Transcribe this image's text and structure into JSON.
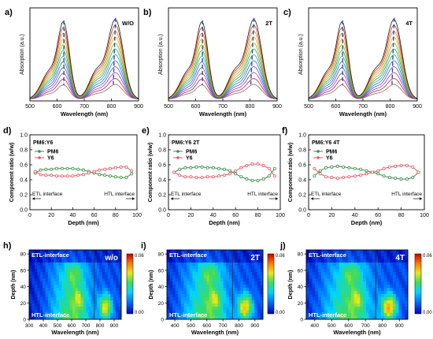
{
  "chart_data": [
    {
      "type": "line",
      "panel_label": "a)",
      "annotation": "W/O",
      "xlabel": "Wavelength (nm)",
      "ylabel": "Absorption (a.u.)",
      "xlim": [
        500,
        900
      ],
      "x_ticks": [
        500,
        600,
        700,
        800,
        900
      ],
      "peaks_nm": [
        625,
        815
      ],
      "curve_count": 12
    },
    {
      "type": "line",
      "panel_label": "b)",
      "annotation": "2T",
      "xlabel": "Wavelength (nm)",
      "ylabel": "Absorption (a.u.)",
      "xlim": [
        500,
        900
      ],
      "x_ticks": [
        500,
        600,
        700,
        800,
        900
      ],
      "peaks_nm": [
        625,
        815
      ],
      "curve_count": 12
    },
    {
      "type": "line",
      "panel_label": "c)",
      "annotation": "4T",
      "xlabel": "Wavelength (nm)",
      "ylabel": "Absorption (a.u.)",
      "xlim": [
        500,
        900
      ],
      "x_ticks": [
        500,
        600,
        700,
        800,
        900
      ],
      "peaks_nm": [
        625,
        815
      ],
      "curve_count": 12
    },
    {
      "type": "line",
      "panel_label": "d)",
      "title": "PM6:Y6",
      "xlabel": "Depth (nm)",
      "ylabel": "Component ratio (w/w)",
      "xlim": [
        0,
        100
      ],
      "ylim": [
        0,
        1.0
      ],
      "x_ticks": [
        0,
        20,
        40,
        60,
        80,
        100
      ],
      "y_ticks": [
        0.0,
        0.2,
        0.4,
        0.6,
        0.8,
        1.0
      ],
      "left_annotation": "ETL interface",
      "right_annotation": "HTL interface",
      "x": [
        5,
        10,
        15,
        20,
        25,
        30,
        35,
        40,
        45,
        50,
        55,
        60,
        65,
        70,
        75,
        80,
        85,
        90,
        95
      ],
      "series": [
        {
          "name": "PM6",
          "color": "#3a8f4a",
          "values": [
            0.49,
            0.53,
            0.54,
            0.54,
            0.55,
            0.55,
            0.55,
            0.55,
            0.54,
            0.53,
            0.51,
            0.49,
            0.47,
            0.46,
            0.45,
            0.44,
            0.43,
            0.43,
            0.48
          ]
        },
        {
          "name": "Y6",
          "color": "#e05a63",
          "values": [
            0.51,
            0.47,
            0.46,
            0.46,
            0.45,
            0.45,
            0.45,
            0.45,
            0.46,
            0.47,
            0.49,
            0.51,
            0.53,
            0.54,
            0.55,
            0.56,
            0.57,
            0.57,
            0.52
          ]
        }
      ]
    },
    {
      "type": "line",
      "panel_label": "e)",
      "title": "PM6:Y6 2T",
      "xlabel": "Depth (nm)",
      "ylabel": "Component ratio (w/w)",
      "xlim": [
        0,
        100
      ],
      "ylim": [
        0,
        1.0
      ],
      "x_ticks": [
        0,
        20,
        40,
        60,
        80,
        100
      ],
      "y_ticks": [
        0.0,
        0.2,
        0.4,
        0.6,
        0.8,
        1.0
      ],
      "left_annotation": "ETL interface",
      "right_annotation": "HTL interface",
      "x": [
        5,
        10,
        15,
        20,
        25,
        30,
        35,
        40,
        45,
        50,
        55,
        60,
        65,
        70,
        75,
        80,
        85,
        90,
        95
      ],
      "series": [
        {
          "name": "PM6",
          "color": "#3a8f4a",
          "values": [
            0.5,
            0.54,
            0.56,
            0.56,
            0.57,
            0.57,
            0.56,
            0.56,
            0.55,
            0.54,
            0.52,
            0.48,
            0.44,
            0.41,
            0.39,
            0.39,
            0.41,
            0.45,
            0.55
          ]
        },
        {
          "name": "Y6",
          "color": "#e05a63",
          "values": [
            0.5,
            0.46,
            0.44,
            0.44,
            0.43,
            0.43,
            0.44,
            0.44,
            0.45,
            0.46,
            0.48,
            0.52,
            0.56,
            0.59,
            0.61,
            0.61,
            0.59,
            0.55,
            0.45
          ]
        }
      ]
    },
    {
      "type": "line",
      "panel_label": "f)",
      "title": "PM6:Y6 4T",
      "xlabel": "Depth (nm)",
      "ylabel": "Component ratio (w/w)",
      "xlim": [
        0,
        100
      ],
      "ylim": [
        0,
        1.0
      ],
      "x_ticks": [
        0,
        20,
        40,
        60,
        80,
        100
      ],
      "y_ticks": [
        0.0,
        0.2,
        0.4,
        0.6,
        0.8,
        1.0
      ],
      "left_annotation": "ETL interface",
      "right_annotation": "HTL interface",
      "x": [
        5,
        10,
        15,
        20,
        25,
        30,
        35,
        40,
        45,
        50,
        55,
        60,
        65,
        70,
        75,
        80,
        85,
        90,
        95
      ],
      "series": [
        {
          "name": "PM6",
          "color": "#3a8f4a",
          "values": [
            0.45,
            0.52,
            0.56,
            0.57,
            0.58,
            0.57,
            0.56,
            0.55,
            0.54,
            0.52,
            0.5,
            0.48,
            0.45,
            0.43,
            0.42,
            0.41,
            0.41,
            0.43,
            0.5
          ]
        },
        {
          "name": "Y6",
          "color": "#e05a63",
          "values": [
            0.55,
            0.48,
            0.44,
            0.43,
            0.42,
            0.43,
            0.44,
            0.45,
            0.46,
            0.48,
            0.5,
            0.52,
            0.55,
            0.57,
            0.58,
            0.59,
            0.59,
            0.57,
            0.5
          ]
        }
      ]
    },
    {
      "type": "heatmap",
      "panel_label": "h)",
      "annotation": "w/o",
      "xlabel": "Wavelength (nm)",
      "ylabel": "Depth (nm)",
      "xlim": [
        300,
        950
      ],
      "ylim": [
        0,
        85
      ],
      "x_ticks": [
        300,
        400,
        500,
        600,
        700,
        800,
        900
      ],
      "y_ticks": [
        0,
        20,
        40,
        60,
        80
      ],
      "top_annotation": "ETL-interface",
      "bottom_annotation": "HTL-interface",
      "colorbar": {
        "min": 0.0,
        "max": 0.06,
        "min_label": "0.00",
        "max_label": "0.06"
      },
      "marker_line_nm": 760
    },
    {
      "type": "heatmap",
      "panel_label": "i)",
      "annotation": "2T",
      "xlabel": "Wavelength (nm)",
      "ylabel": "Depth (nm)",
      "xlim": [
        350,
        950
      ],
      "ylim": [
        0,
        85
      ],
      "x_ticks": [
        400,
        500,
        600,
        700,
        800,
        900
      ],
      "y_ticks": [
        0,
        20,
        40,
        60,
        80
      ],
      "top_annotation": "ETL-interface",
      "bottom_annotation": "HTL-interface",
      "colorbar": {
        "min": 0.0,
        "max": 0.06,
        "min_label": "0.00",
        "max_label": "0.06"
      },
      "marker_line_nm": 760
    },
    {
      "type": "heatmap",
      "panel_label": "j)",
      "annotation": "4T",
      "xlabel": "Wavelength (nm)",
      "ylabel": "Depth (nm)",
      "xlim": [
        350,
        950
      ],
      "ylim": [
        0,
        85
      ],
      "x_ticks": [
        400,
        500,
        600,
        700,
        800,
        900
      ],
      "y_ticks": [
        0,
        20,
        40,
        60,
        80
      ],
      "top_annotation": "ETL-interface",
      "bottom_annotation": "HTL-interface",
      "colorbar": {
        "min": 0.0,
        "max": 0.06,
        "min_label": "0.00",
        "max_label": "0.06"
      },
      "marker_line_nm": 760
    }
  ]
}
